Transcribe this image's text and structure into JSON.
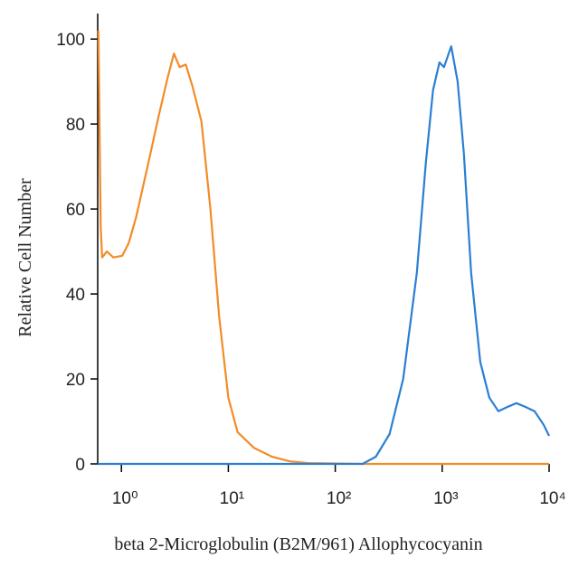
{
  "chart_data": {
    "type": "line",
    "x_label": "beta 2-Microglobulin (B2M/961) Allophycocyanin",
    "y_label": "Relative Cell Number",
    "xscale": "log",
    "xlim": [
      0.6,
      10000
    ],
    "ylim": [
      0,
      106
    ],
    "xticks": [
      {
        "value": 1,
        "label": "10⁰"
      },
      {
        "value": 10,
        "label": "10¹"
      },
      {
        "value": 100,
        "label": "10²"
      },
      {
        "value": 1000,
        "label": "10³"
      },
      {
        "value": 10000,
        "label": "10⁴"
      }
    ],
    "yticks": [
      0,
      20,
      40,
      60,
      80,
      100
    ],
    "series": [
      {
        "color": "#f28c28",
        "x": [
          0.61,
          0.64,
          0.66,
          0.73,
          0.84,
          1.02,
          1.17,
          1.37,
          1.57,
          1.83,
          2.22,
          2.71,
          3.1,
          3.5,
          4.0,
          4.6,
          5.6,
          6.8,
          8.2,
          10,
          12.2,
          17.3,
          25.5,
          37.7,
          55.7,
          180,
          10000
        ],
        "values": [
          102,
          56,
          48.6,
          50,
          48.6,
          49,
          52,
          58,
          64.6,
          72,
          81.7,
          91,
          96.6,
          93.4,
          94,
          89,
          80.6,
          60,
          34.8,
          15.6,
          7.5,
          3.8,
          1.7,
          0.6,
          0.2,
          0,
          0
        ]
      },
      {
        "color": "#2a7fd4",
        "x": [
          0.6,
          180,
          240,
          322,
          432,
          579,
          704,
          822,
          944,
          1040,
          1216,
          1394,
          1596,
          1866,
          2270,
          2760,
          3350,
          4070,
          4950,
          6020,
          7310,
          8890,
          10000
        ],
        "values": [
          0,
          0,
          1.7,
          7,
          20,
          45,
          71,
          88,
          94.5,
          93.4,
          98.3,
          90,
          73,
          45,
          24,
          15.6,
          12.4,
          13.4,
          14.3,
          13.4,
          12.4,
          9.2,
          6.6
        ]
      }
    ]
  }
}
